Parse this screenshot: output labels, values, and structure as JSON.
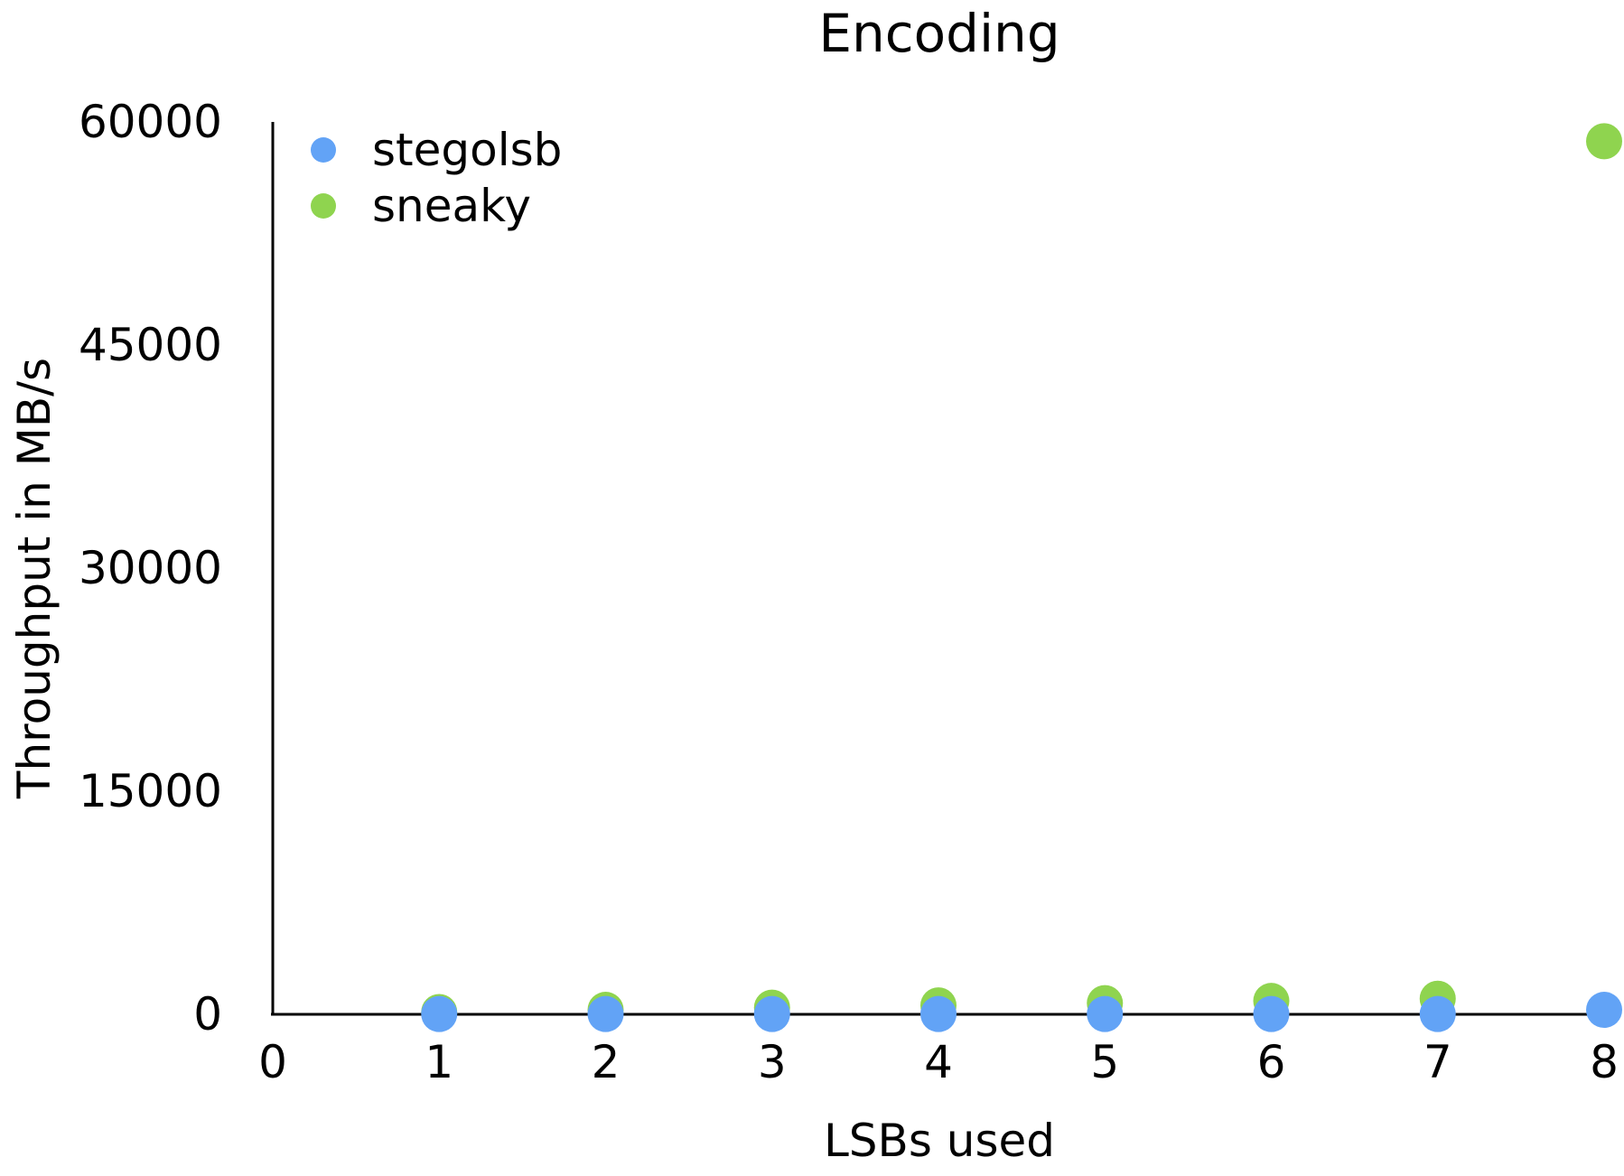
{
  "chart_data": {
    "type": "scatter",
    "title": "Encoding",
    "xlabel": "LSBs used",
    "ylabel": "Throughput in MB/s",
    "xlim": [
      0,
      8
    ],
    "ylim": [
      0,
      60000
    ],
    "xticks": [
      "0",
      "1",
      "2",
      "3",
      "4",
      "5",
      "6",
      "7",
      "8"
    ],
    "yticks": [
      "0",
      "15000",
      "30000",
      "45000",
      "60000"
    ],
    "grid": false,
    "legend_position": "top-left",
    "series": [
      {
        "name": "sneaky",
        "color": "#8fd44f",
        "x": [
          1,
          2,
          3,
          4,
          5,
          6,
          7,
          8
        ],
        "y": [
          150,
          300,
          450,
          600,
          750,
          900,
          1050,
          58700
        ]
      },
      {
        "name": "stegolsb",
        "color": "#62a3f6",
        "x": [
          1,
          2,
          3,
          4,
          5,
          6,
          7,
          8
        ],
        "y": [
          20,
          20,
          20,
          20,
          20,
          20,
          20,
          300
        ]
      }
    ],
    "legend": [
      {
        "name": "stegolsb",
        "color": "#62a3f6"
      },
      {
        "name": "sneaky",
        "color": "#8fd44f"
      }
    ]
  }
}
